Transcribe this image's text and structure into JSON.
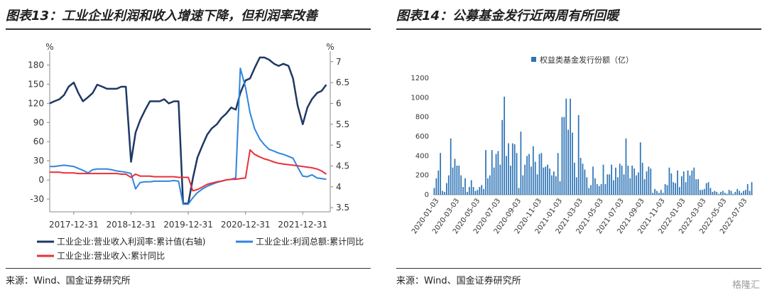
{
  "left": {
    "title": "图表13：工业企业利润和收入增速下降，但利润率改善",
    "source": "来源：Wind、国金证券研究所",
    "chart_data": {
      "type": "line",
      "left_axis": {
        "unit": "%",
        "ticks": [
          180,
          150,
          120,
          90,
          60,
          30,
          0,
          -30
        ],
        "range": [
          -50,
          195
        ]
      },
      "right_axis": {
        "unit": "%",
        "ticks": [
          7,
          6.5,
          6,
          5.5,
          5,
          4.5,
          4,
          3.5
        ],
        "range": [
          3.4,
          7.15
        ]
      },
      "x_ticks": [
        "2017-12-31",
        "2018-12-31",
        "2019-12-31",
        "2020-12-31",
        "2021-12-31"
      ],
      "x_range": [
        2017.5,
        2022.4
      ],
      "series": [
        {
          "name": "工业企业:营业收入利润率:累计值(右轴)",
          "axis": "right",
          "color": "#1f3864",
          "x": [
            2017.5,
            2017.58,
            2017.67,
            2017.75,
            2017.83,
            2017.92,
            2018.0,
            2018.08,
            2018.17,
            2018.25,
            2018.33,
            2018.42,
            2018.5,
            2018.58,
            2018.67,
            2018.75,
            2018.83,
            2018.92,
            2019.0,
            2019.08,
            2019.17,
            2019.25,
            2019.33,
            2019.42,
            2019.5,
            2019.58,
            2019.67,
            2019.75,
            2019.83,
            2019.92,
            2020.0,
            2020.08,
            2020.17,
            2020.25,
            2020.33,
            2020.42,
            2020.5,
            2020.58,
            2020.67,
            2020.75,
            2020.83,
            2020.92,
            2021.0,
            2021.08,
            2021.17,
            2021.25,
            2021.33,
            2021.42,
            2021.5,
            2021.58,
            2021.67,
            2021.75,
            2021.83,
            2021.92,
            2022.0,
            2022.08,
            2022.17,
            2022.25,
            2022.33
          ],
          "values": [
            6.0,
            6.05,
            6.1,
            6.2,
            6.4,
            6.5,
            6.25,
            6.05,
            6.15,
            6.25,
            6.45,
            6.4,
            6.35,
            6.35,
            6.35,
            6.4,
            6.4,
            4.6,
            5.3,
            5.6,
            5.85,
            6.05,
            6.05,
            6.05,
            6.1,
            6.0,
            6.05,
            6.05,
            3.6,
            3.6,
            4.2,
            4.7,
            5.0,
            5.25,
            5.4,
            5.5,
            5.65,
            5.75,
            5.9,
            5.85,
            6.25,
            6.55,
            6.6,
            6.85,
            7.1,
            7.1,
            7.05,
            6.95,
            6.9,
            6.95,
            6.9,
            6.6,
            5.95,
            5.5,
            5.9,
            6.1,
            6.25,
            6.3,
            6.45
          ]
        },
        {
          "name": "工业企业:利润总额:累计同比",
          "axis": "left",
          "color": "#2e86de",
          "x": [
            2017.5,
            2017.58,
            2017.67,
            2017.75,
            2017.83,
            2017.92,
            2018.0,
            2018.08,
            2018.17,
            2018.25,
            2018.33,
            2018.42,
            2018.5,
            2018.58,
            2018.67,
            2018.75,
            2018.83,
            2018.92,
            2019.0,
            2019.08,
            2019.17,
            2019.25,
            2019.33,
            2019.42,
            2019.5,
            2019.58,
            2019.67,
            2019.75,
            2019.83,
            2019.92,
            2020.0,
            2020.08,
            2020.17,
            2020.25,
            2020.33,
            2020.42,
            2020.5,
            2020.58,
            2020.67,
            2020.75,
            2020.83,
            2020.92,
            2021.0,
            2021.08,
            2021.17,
            2021.25,
            2021.33,
            2021.42,
            2021.5,
            2021.58,
            2021.67,
            2021.75,
            2021.83,
            2021.92,
            2022.0,
            2022.08,
            2022.17,
            2022.25,
            2022.33
          ],
          "values": [
            21,
            21,
            22,
            23,
            22,
            21,
            18,
            15,
            11,
            16,
            17,
            17,
            17,
            16,
            14,
            13,
            12,
            10,
            -14,
            -4,
            -3,
            -3,
            -2,
            -2,
            -2,
            -2,
            -1,
            -2,
            -38,
            -38,
            -28,
            -20,
            -14,
            -10,
            -7,
            -4,
            -2,
            0,
            1,
            3,
            175,
            145,
            105,
            80,
            64,
            55,
            48,
            45,
            42,
            40,
            37,
            34,
            20,
            6,
            5,
            8,
            3,
            2,
            1
          ]
        },
        {
          "name": "工业企业:营业收入:累计同比",
          "axis": "left",
          "color": "#e8303a",
          "x": [
            2017.5,
            2017.58,
            2017.67,
            2017.75,
            2017.83,
            2017.92,
            2018.0,
            2018.08,
            2018.17,
            2018.25,
            2018.33,
            2018.42,
            2018.5,
            2018.58,
            2018.67,
            2018.75,
            2018.83,
            2018.92,
            2019.0,
            2019.08,
            2019.17,
            2019.25,
            2019.33,
            2019.42,
            2019.5,
            2019.58,
            2019.67,
            2019.75,
            2019.83,
            2019.92,
            2020.0,
            2020.08,
            2020.17,
            2020.25,
            2020.33,
            2020.42,
            2020.5,
            2020.58,
            2020.67,
            2020.75,
            2020.83,
            2020.92,
            2021.0,
            2021.08,
            2021.17,
            2021.25,
            2021.33,
            2021.42,
            2021.5,
            2021.58,
            2021.67,
            2021.75,
            2021.83,
            2021.92,
            2022.0,
            2022.08,
            2022.17,
            2022.25,
            2022.33
          ],
          "values": [
            12,
            12,
            12,
            11,
            11,
            11,
            10,
            10,
            10,
            10,
            10,
            10,
            10,
            10,
            10,
            9,
            9,
            4,
            9,
            6,
            6,
            6,
            5,
            5,
            5,
            5,
            5,
            4,
            4,
            4,
            -17,
            -15,
            -11,
            -7,
            -5,
            -3,
            -2,
            0,
            1,
            1,
            2,
            3,
            47,
            40,
            36,
            33,
            31,
            28,
            26,
            25,
            24,
            23,
            22,
            21,
            20,
            19,
            17,
            14,
            9
          ]
        }
      ]
    }
  },
  "right": {
    "title": "图表14：公募基金发行近两周有所回暖",
    "source": "来源：Wind、国金证券研究所",
    "watermark": "格隆汇",
    "chart_data": {
      "type": "bar",
      "legend": "权益类基金发行份额（亿）",
      "color": "#2e75b6",
      "y_ticks": [
        1200,
        1000,
        800,
        600,
        400,
        200,
        0
      ],
      "ylim": [
        0,
        1200
      ],
      "x_ticks": [
        "2020-01-03",
        "2020-03-03",
        "2020-05-03",
        "2020-07-03",
        "2020-09-03",
        "2020-11-03",
        "2021-01-03",
        "2021-03-03",
        "2021-05-03",
        "2021-07-03",
        "2021-09-03",
        "2021-11-03",
        "2022-01-03",
        "2022-03-03",
        "2022-05-03",
        "2022-07-03"
      ],
      "values": [
        70,
        170,
        250,
        430,
        40,
        30,
        120,
        200,
        580,
        280,
        370,
        300,
        300,
        200,
        80,
        170,
        30,
        80,
        150,
        80,
        40,
        50,
        80,
        100,
        60,
        460,
        170,
        200,
        460,
        280,
        420,
        450,
        310,
        770,
        1010,
        400,
        530,
        300,
        530,
        520,
        430,
        70,
        650,
        200,
        310,
        400,
        420,
        290,
        500,
        340,
        210,
        420,
        430,
        280,
        290,
        310,
        270,
        200,
        240,
        190,
        430,
        140,
        800,
        800,
        990,
        670,
        990,
        640,
        330,
        180,
        820,
        380,
        320,
        260,
        180,
        70,
        100,
        290,
        170,
        110,
        90,
        110,
        310,
        110,
        210,
        210,
        310,
        150,
        280,
        180,
        320,
        300,
        210,
        580,
        300,
        170,
        300,
        270,
        200,
        230,
        540,
        330,
        160,
        240,
        290,
        270,
        20,
        60,
        40,
        20,
        50,
        20,
        110,
        100,
        280,
        220,
        130,
        120,
        250,
        80,
        190,
        240,
        130,
        250,
        200,
        250,
        280,
        160,
        160,
        50,
        50,
        60,
        120,
        130,
        70,
        30,
        40,
        30,
        10,
        30,
        40,
        20,
        10,
        50,
        40,
        10,
        30,
        60,
        40,
        20,
        40,
        50,
        110,
        40,
        130
      ]
    }
  }
}
